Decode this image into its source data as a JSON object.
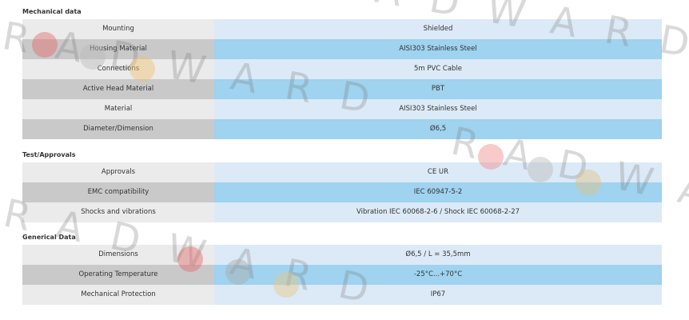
{
  "watermark": "RADWARD",
  "sections": [
    {
      "title": "Mechanical data",
      "rows": [
        [
          "Mounting",
          "Shielded"
        ],
        [
          "Housing Material",
          "AISI303 Stainless Steel"
        ],
        [
          "Connections",
          "5m PVC Cable"
        ],
        [
          "Active Head Material",
          "PBT"
        ],
        [
          "Material",
          "AISI303 Stainless Steel"
        ],
        [
          "Diameter/Dimension",
          "Ø6,5"
        ]
      ]
    },
    {
      "title": "Test/Approvals",
      "rows": [
        [
          "Approvals",
          "CE UR"
        ],
        [
          "EMC compatibility",
          "IEC 60947-5-2"
        ],
        [
          "Shocks and vibrations",
          "Vibration IEC 60068-2-6 / Shock IEC 60068-2-27"
        ]
      ]
    },
    {
      "title": "Generical Data",
      "rows": [
        [
          "Dimensions",
          "Ø6,5 / L = 35,5mm"
        ],
        [
          "Operating Temperature",
          "-25°C...+70°C"
        ],
        [
          "Mechanical Protection",
          "IP67"
        ]
      ]
    }
  ]
}
